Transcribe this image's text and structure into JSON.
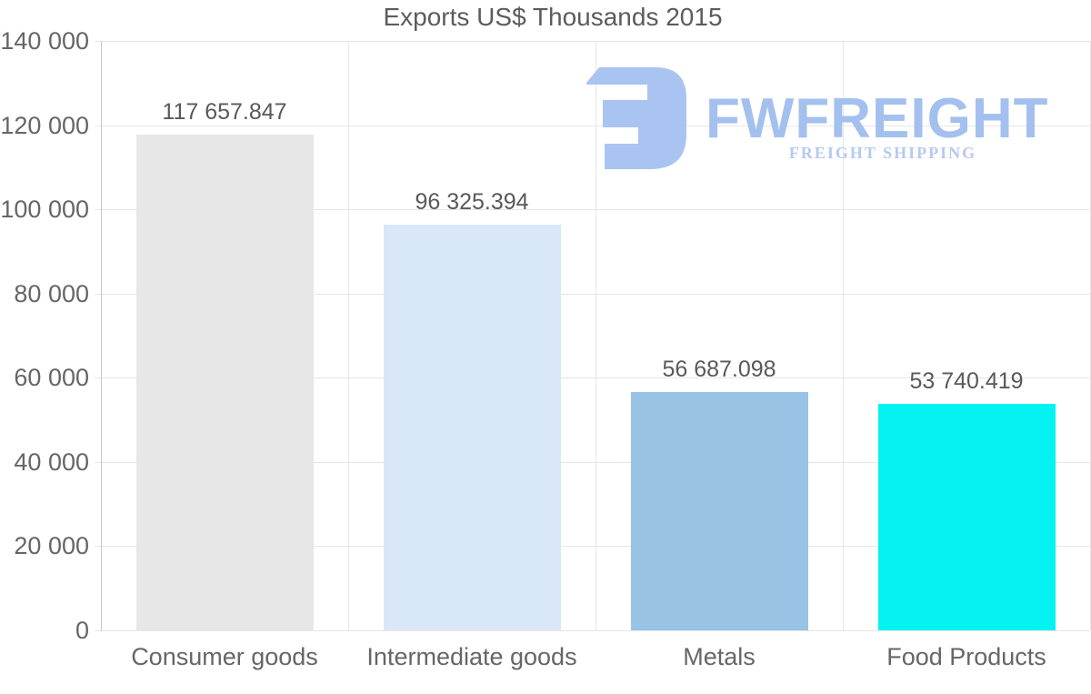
{
  "title": "Exports US$ Thousands 2015",
  "chart_data": {
    "type": "bar",
    "title": "Exports US$ Thousands 2015",
    "categories": [
      "Consumer goods",
      "Intermediate goods",
      "Metals",
      "Food Products"
    ],
    "values": [
      117657.847,
      96325.394,
      56687.098,
      53740.419
    ],
    "value_labels": [
      "117 657.847",
      "96 325.394",
      "56 687.098",
      "53 740.419"
    ],
    "bar_colors": [
      "#e7e7e7",
      "#d9e8f8",
      "#98c3e5",
      "#05f2f2"
    ],
    "xlabel": "",
    "ylabel": "",
    "ylim": [
      0,
      140000
    ],
    "ytick_values": [
      0,
      20000,
      40000,
      60000,
      80000,
      100000,
      120000,
      140000
    ],
    "ytick_labels": [
      "0",
      "20 000",
      "40 000",
      "60 000",
      "80 000",
      "100 000",
      "120 000",
      "140 000"
    ],
    "grid": true,
    "legend_position": "none",
    "grid_color": "#e6e6e6",
    "axis_color": "#c9c9c9",
    "title_color": "#5c5c5c",
    "tick_label_color": "#666666",
    "value_label_color": "#595959"
  },
  "watermark": {
    "brand": "FWFREIGHT",
    "tagline": "FREIGHT SHIPPING",
    "brand_color": "#a3c0ee",
    "tagline_color": "#b5c9f0",
    "icon_color": "#a9c4f1"
  }
}
